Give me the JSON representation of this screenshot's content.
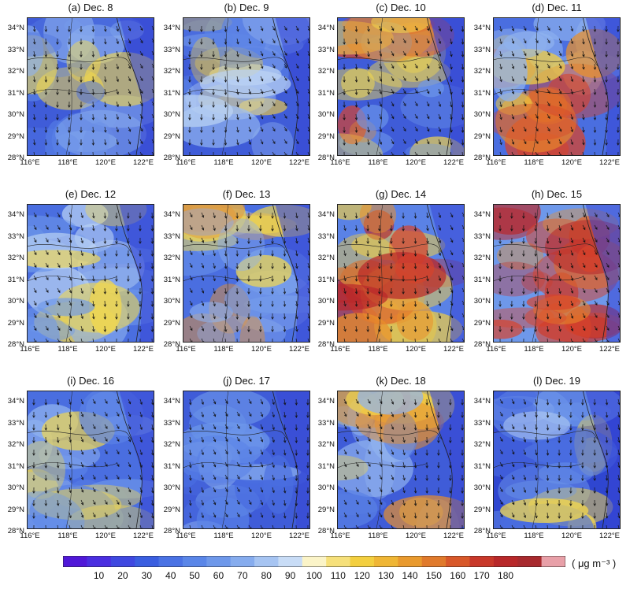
{
  "panels": [
    {
      "title": "(a) Dec. 8",
      "colors": [
        "#3f5cd8",
        "#4a6ee0",
        "#5a82e6",
        "#8fb2ee",
        "#f5d94a"
      ],
      "heat": 0.15
    },
    {
      "title": "(b) Dec. 9",
      "colors": [
        "#3f5cd8",
        "#5a82e6",
        "#8fb2ee",
        "#bcd4f3",
        "#f3cf3f"
      ],
      "heat": 0.25
    },
    {
      "title": "(c) Dec. 10",
      "colors": [
        "#3f5cd8",
        "#6e98ea",
        "#f5d94a",
        "#e9902a",
        "#d8432a"
      ],
      "heat": 0.6
    },
    {
      "title": "(d) Dec. 11",
      "colors": [
        "#4a6ee0",
        "#8fb2ee",
        "#f3cf3f",
        "#e9902a",
        "#d8432a"
      ],
      "heat": 0.6
    },
    {
      "title": "(e) Dec. 12",
      "colors": [
        "#4a6ee0",
        "#6e98ea",
        "#8fb2ee",
        "#bcd4f3",
        "#f5d94a"
      ],
      "heat": 0.3
    },
    {
      "title": "(f) Dec. 13",
      "colors": [
        "#4a6ee0",
        "#6e98ea",
        "#8fb2ee",
        "#f5d94a",
        "#e9902a"
      ],
      "heat": 0.4
    },
    {
      "title": "(g) Dec. 14",
      "colors": [
        "#5a82e6",
        "#f3cf3f",
        "#e9902a",
        "#d8432a",
        "#b8282a"
      ],
      "heat": 0.75
    },
    {
      "title": "(h) Dec. 15",
      "colors": [
        "#6e98ea",
        "#e9902a",
        "#d8432a",
        "#c4302a",
        "#b8282a"
      ],
      "heat": 0.9
    },
    {
      "title": "(i) Dec. 16",
      "colors": [
        "#4a6ee0",
        "#5a82e6",
        "#6e98ea",
        "#8fb2ee",
        "#f5d94a"
      ],
      "heat": 0.15
    },
    {
      "title": "(j) Dec. 17",
      "colors": [
        "#3f5cd8",
        "#4a6ee0",
        "#5a82e6",
        "#6e98ea",
        "#8fb2ee"
      ],
      "heat": 0.1
    },
    {
      "title": "(k) Dec. 18",
      "colors": [
        "#3f5cd8",
        "#5a82e6",
        "#8fb2ee",
        "#f5d94a",
        "#e9902a"
      ],
      "heat": 0.35
    },
    {
      "title": "(l) Dec. 19",
      "colors": [
        "#2f46d0",
        "#4a6ee0",
        "#6e98ea",
        "#bcd4f3",
        "#f5d94a"
      ],
      "heat": 0.25
    }
  ],
  "lat_labels": [
    "34°N",
    "33°N",
    "32°N",
    "31°N",
    "30°N",
    "29°N",
    "28°N"
  ],
  "lon_labels": [
    "116°E",
    "118°E",
    "120°E",
    "122°E"
  ],
  "colorbar": {
    "ticks": [
      "10",
      "20",
      "30",
      "40",
      "50",
      "60",
      "70",
      "80",
      "90",
      "100",
      "110",
      "120",
      "130",
      "140",
      "150",
      "160",
      "170",
      "180"
    ],
    "unit": "( μg m⁻³ )",
    "colors": [
      "#5018d8",
      "#4a2ee0",
      "#3f48e0",
      "#3a5ee0",
      "#4a72e4",
      "#5a86e8",
      "#6e98ea",
      "#86acee",
      "#a6c4f2",
      "#c8dcf6",
      "#fbf4c8",
      "#f6e07a",
      "#f3cf3f",
      "#efb635",
      "#e99a2e",
      "#e07a2c",
      "#d8582a",
      "#c8382a",
      "#b8282a",
      "#a82a2e",
      "#e8a0a8"
    ]
  }
}
